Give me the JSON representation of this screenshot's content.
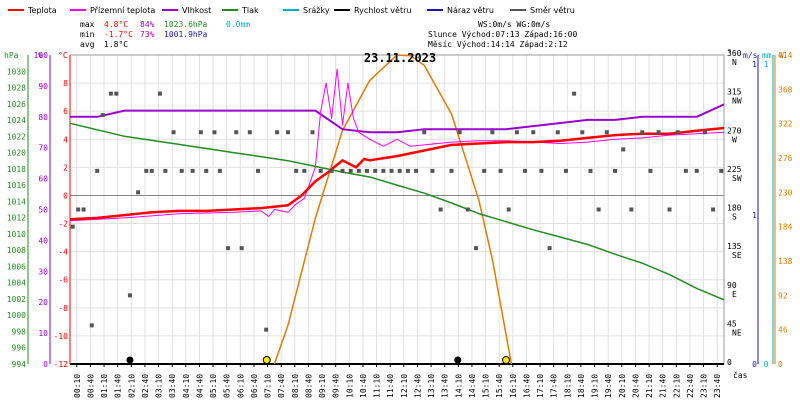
{
  "chart_data": {
    "type": "line",
    "title": "23.11.2023",
    "xlabel": "čas",
    "legend": [
      {
        "label": "Teplota",
        "color": "#ff0000"
      },
      {
        "label": "Přízemní teplota",
        "color": "#ff00ff"
      },
      {
        "label": "Vlhkost",
        "color": "#9900cc"
      },
      {
        "label": "Tlak",
        "color": "#228b22"
      },
      {
        "label": "Srážky",
        "color": "#00aacc"
      },
      {
        "label": "Rychlost větru",
        "color": "#000000"
      },
      {
        "label": "Náraz větru",
        "color": "#1a1aa6"
      },
      {
        "label": "Směr větru",
        "color": "#555555"
      }
    ],
    "stats": {
      "max": {
        "label": "max",
        "temp": "4.8°C",
        "hum": "84%",
        "press": "1023.6hPa",
        "rain": "0.0mm"
      },
      "min": {
        "label": "min",
        "temp": "-1.7°C",
        "hum": "73%",
        "press": "1001.9hPa"
      },
      "avg": {
        "label": "avg",
        "temp": "1.8°C"
      }
    },
    "info": {
      "line1": "WS:0m/s     WG:0m/s",
      "line2": "Slunce Východ:07:13  Západ:16:00",
      "line3": "Měsíc  Východ:14:14  Západ:2:12"
    },
    "axes": {
      "hpa": {
        "unit": "hPa",
        "range": [
          994,
          1032
        ],
        "ticks": [
          "1030",
          "1028",
          "1026",
          "1024",
          "1022",
          "1020",
          "1018",
          "1016",
          "1014",
          "1012",
          "1010",
          "1008",
          "1006",
          "1004",
          "1002",
          "1000",
          "998",
          "996",
          "994"
        ]
      },
      "pct": {
        "unit": "%",
        "range": [
          0,
          100
        ],
        "ticks": [
          "100",
          "90",
          "80",
          "70",
          "60",
          "50",
          "40",
          "30",
          "20",
          "10",
          "0"
        ]
      },
      "temp": {
        "unit": "°C",
        "range": [
          -12,
          10
        ],
        "ticks": [
          "8",
          "6",
          "4",
          "2",
          "0",
          "-2",
          "-4",
          "-6",
          "-8",
          "-10",
          "-12"
        ]
      },
      "deg": {
        "unit": "°",
        "range": [
          0,
          360
        ],
        "ticks": [
          {
            "v": 360,
            "l": "360",
            "d": "N"
          },
          {
            "v": 315,
            "l": "315",
            "d": "NW"
          },
          {
            "v": 270,
            "l": "270",
            "d": "W"
          },
          {
            "v": 225,
            "l": "225",
            "d": "SW"
          },
          {
            "v": 180,
            "l": "180",
            "d": "S"
          },
          {
            "v": 135,
            "l": "135",
            "d": "SE"
          },
          {
            "v": 90,
            "l": "90",
            "d": "E"
          },
          {
            "v": 45,
            "l": "45",
            "d": "NE"
          },
          {
            "v": 0,
            "l": "0",
            "d": ""
          }
        ]
      },
      "ms": {
        "unit": "m/s",
        "top": "1",
        "mid": "1",
        "bottom": "0"
      },
      "mm": {
        "unit": "mm",
        "top": "1",
        "bottom": "0"
      },
      "wm2": {
        "unit": "W",
        "range": [
          0,
          414
        ],
        "ticks": [
          "414",
          "368",
          "322",
          "276",
          "230",
          "184",
          "138",
          "92",
          "46",
          "0"
        ]
      }
    },
    "x_ticks": [
      "00:10",
      "00:40",
      "01:10",
      "01:40",
      "02:10",
      "02:40",
      "03:10",
      "03:40",
      "04:10",
      "04:40",
      "05:10",
      "05:40",
      "06:10",
      "06:40",
      "07:10",
      "07:40",
      "08:10",
      "08:40",
      "09:10",
      "09:40",
      "10:10",
      "10:40",
      "11:10",
      "11:40",
      "12:10",
      "12:40",
      "13:10",
      "13:40",
      "14:10",
      "14:40",
      "15:10",
      "15:40",
      "16:10",
      "16:40",
      "17:10",
      "17:40",
      "18:10",
      "18:40",
      "19:10",
      "19:40",
      "20:10",
      "20:40",
      "21:10",
      "21:40",
      "22:10",
      "22:40",
      "23:10",
      "23:40"
    ],
    "x_range_hours": [
      0,
      24
    ],
    "temperature": [
      [
        0,
        -1.7
      ],
      [
        1,
        -1.6
      ],
      [
        2,
        -1.4
      ],
      [
        3,
        -1.2
      ],
      [
        4,
        -1.1
      ],
      [
        5,
        -1.1
      ],
      [
        6,
        -1.0
      ],
      [
        7,
        -0.9
      ],
      [
        7.5,
        -0.8
      ],
      [
        8,
        -0.7
      ],
      [
        8.5,
        0.0
      ],
      [
        9,
        1.0
      ],
      [
        9.5,
        1.7
      ],
      [
        10,
        2.5
      ],
      [
        10.5,
        2.0
      ],
      [
        10.8,
        2.6
      ],
      [
        11,
        2.5
      ],
      [
        12,
        2.8
      ],
      [
        13,
        3.2
      ],
      [
        14,
        3.6
      ],
      [
        15,
        3.7
      ],
      [
        16,
        3.8
      ],
      [
        17,
        3.8
      ],
      [
        18,
        3.9
      ],
      [
        19,
        4.1
      ],
      [
        20,
        4.3
      ],
      [
        21,
        4.4
      ],
      [
        22,
        4.4
      ],
      [
        23,
        4.6
      ],
      [
        24,
        4.8
      ]
    ],
    "ground_temperature": [
      [
        0,
        -1.8
      ],
      [
        2,
        -1.6
      ],
      [
        4,
        -1.3
      ],
      [
        6,
        -1.2
      ],
      [
        7,
        -1.1
      ],
      [
        7.3,
        -1.5
      ],
      [
        7.5,
        -1.0
      ],
      [
        8,
        -1.2
      ],
      [
        8.3,
        -0.6
      ],
      [
        8.6,
        -0.2
      ],
      [
        9,
        2.0
      ],
      [
        9.2,
        6.0
      ],
      [
        9.4,
        8.0
      ],
      [
        9.6,
        5.5
      ],
      [
        9.8,
        9.0
      ],
      [
        10,
        5.0
      ],
      [
        10.2,
        8.0
      ],
      [
        10.4,
        5.5
      ],
      [
        10.6,
        4.5
      ],
      [
        11,
        4.0
      ],
      [
        11.5,
        3.5
      ],
      [
        12,
        4.0
      ],
      [
        12.5,
        3.5
      ],
      [
        13,
        3.6
      ],
      [
        14,
        3.8
      ],
      [
        15,
        3.9
      ],
      [
        16,
        3.9
      ],
      [
        17,
        3.8
      ],
      [
        18,
        3.7
      ],
      [
        19,
        3.8
      ],
      [
        20,
        4.0
      ],
      [
        21,
        4.1
      ],
      [
        22,
        4.3
      ],
      [
        23,
        4.4
      ],
      [
        24,
        4.5
      ]
    ],
    "humidity": [
      [
        0,
        80
      ],
      [
        1,
        80
      ],
      [
        2,
        82
      ],
      [
        4,
        82
      ],
      [
        6,
        82
      ],
      [
        8,
        82
      ],
      [
        9,
        82
      ],
      [
        10,
        76
      ],
      [
        11,
        75
      ],
      [
        12,
        75
      ],
      [
        13,
        76
      ],
      [
        14,
        76
      ],
      [
        15,
        76
      ],
      [
        16,
        76
      ],
      [
        17,
        77
      ],
      [
        18,
        78
      ],
      [
        19,
        79
      ],
      [
        20,
        79
      ],
      [
        21,
        80
      ],
      [
        22,
        80
      ],
      [
        23,
        80
      ],
      [
        24,
        84
      ]
    ],
    "pressure": [
      [
        0,
        1023.6
      ],
      [
        1,
        1022.8
      ],
      [
        2,
        1022.0
      ],
      [
        3,
        1021.5
      ],
      [
        4,
        1021.0
      ],
      [
        5,
        1020.5
      ],
      [
        6,
        1020.0
      ],
      [
        7,
        1019.5
      ],
      [
        8,
        1019.0
      ],
      [
        9,
        1018.3
      ],
      [
        10,
        1017.6
      ],
      [
        11,
        1017.0
      ],
      [
        12,
        1016.0
      ],
      [
        13,
        1015.0
      ],
      [
        14,
        1013.8
      ],
      [
        15,
        1012.5
      ],
      [
        16,
        1011.5
      ],
      [
        17,
        1010.5
      ],
      [
        18,
        1009.6
      ],
      [
        19,
        1008.7
      ],
      [
        20,
        1007.5
      ],
      [
        21,
        1006.4
      ],
      [
        22,
        1005.0
      ],
      [
        23,
        1003.3
      ],
      [
        24,
        1001.9
      ]
    ],
    "solar": [
      [
        7.5,
        0
      ],
      [
        8,
        52
      ],
      [
        9,
        195
      ],
      [
        10,
        313
      ],
      [
        11,
        380
      ],
      [
        12,
        414
      ],
      [
        12.5,
        413
      ],
      [
        13,
        400
      ],
      [
        14,
        335
      ],
      [
        15,
        220
      ],
      [
        15.5,
        140
      ],
      [
        16,
        40
      ],
      [
        16.2,
        0
      ]
    ],
    "wind_direction": [
      [
        0.1,
        160
      ],
      [
        0.3,
        180
      ],
      [
        0.5,
        180
      ],
      [
        0.8,
        45
      ],
      [
        1,
        225
      ],
      [
        1.2,
        290
      ],
      [
        1.5,
        315
      ],
      [
        1.7,
        315
      ],
      [
        2.2,
        80
      ],
      [
        2.5,
        200
      ],
      [
        2.8,
        225
      ],
      [
        3.0,
        225
      ],
      [
        3.3,
        315
      ],
      [
        3.5,
        225
      ],
      [
        3.8,
        270
      ],
      [
        4.1,
        225
      ],
      [
        4.5,
        225
      ],
      [
        4.8,
        270
      ],
      [
        5.0,
        225
      ],
      [
        5.3,
        270
      ],
      [
        5.5,
        225
      ],
      [
        5.8,
        135
      ],
      [
        6.1,
        270
      ],
      [
        6.3,
        135
      ],
      [
        6.6,
        270
      ],
      [
        6.9,
        225
      ],
      [
        7.2,
        40
      ],
      [
        7.6,
        270
      ],
      [
        8.0,
        270
      ],
      [
        8.3,
        225
      ],
      [
        8.6,
        225
      ],
      [
        8.9,
        270
      ],
      [
        9.2,
        225
      ],
      [
        9.6,
        225
      ],
      [
        10.0,
        225
      ],
      [
        10.3,
        225
      ],
      [
        10.6,
        225
      ],
      [
        10.9,
        225
      ],
      [
        11.2,
        225
      ],
      [
        11.5,
        225
      ],
      [
        11.8,
        225
      ],
      [
        12.1,
        225
      ],
      [
        12.4,
        225
      ],
      [
        12.7,
        225
      ],
      [
        13.0,
        270
      ],
      [
        13.3,
        225
      ],
      [
        13.6,
        180
      ],
      [
        14.0,
        225
      ],
      [
        14.3,
        270
      ],
      [
        14.6,
        180
      ],
      [
        14.9,
        135
      ],
      [
        15.2,
        225
      ],
      [
        15.5,
        270
      ],
      [
        15.8,
        225
      ],
      [
        16.1,
        180
      ],
      [
        16.4,
        270
      ],
      [
        16.7,
        225
      ],
      [
        17.0,
        270
      ],
      [
        17.3,
        225
      ],
      [
        17.6,
        135
      ],
      [
        17.9,
        270
      ],
      [
        18.2,
        225
      ],
      [
        18.5,
        315
      ],
      [
        18.8,
        270
      ],
      [
        19.1,
        225
      ],
      [
        19.4,
        180
      ],
      [
        19.7,
        270
      ],
      [
        20.0,
        225
      ],
      [
        20.3,
        250
      ],
      [
        20.6,
        180
      ],
      [
        21.0,
        270
      ],
      [
        21.3,
        225
      ],
      [
        21.6,
        270
      ],
      [
        22.0,
        180
      ],
      [
        22.3,
        270
      ],
      [
        22.6,
        225
      ],
      [
        23.0,
        225
      ],
      [
        23.3,
        270
      ],
      [
        23.6,
        180
      ],
      [
        23.9,
        225
      ]
    ],
    "sun_marks": [
      7.22,
      16.0
    ],
    "moon_marks": [
      2.2,
      14.23
    ]
  }
}
